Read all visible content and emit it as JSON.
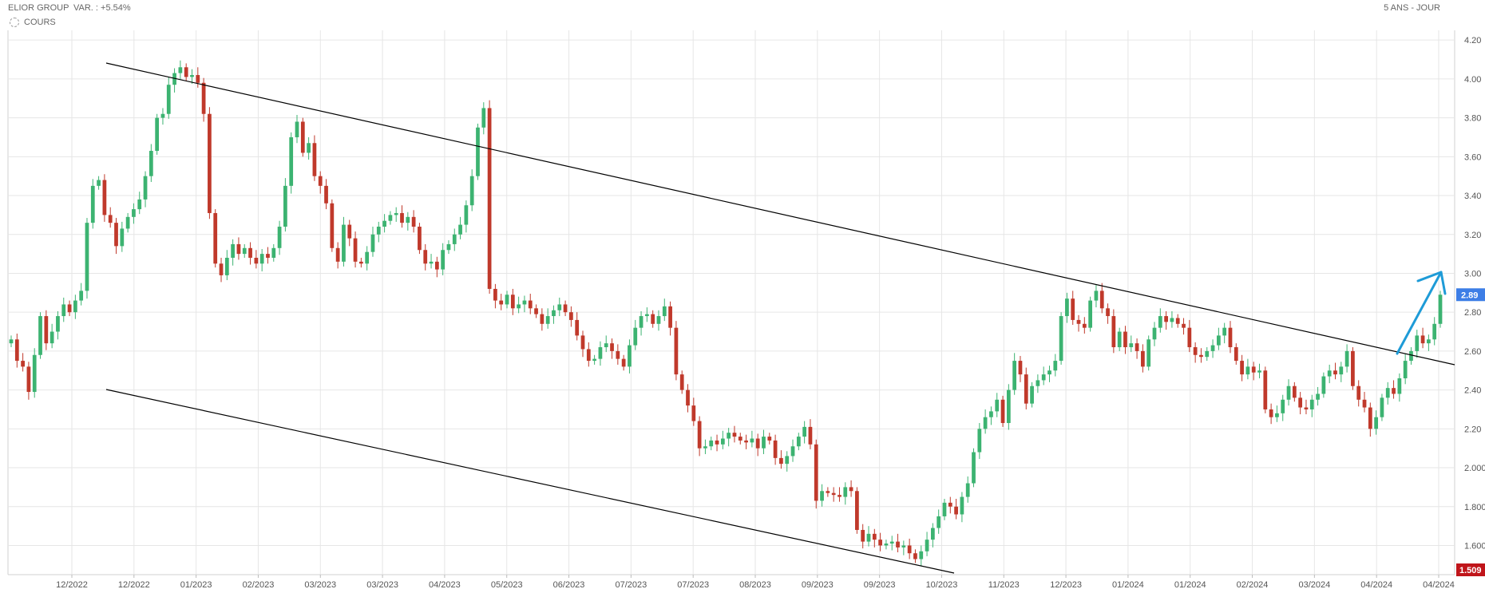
{
  "header": {
    "name": "ELIOR GROUP",
    "var": "VAR. : +5.54%",
    "period": "5 ANS - JOUR"
  },
  "legend": {
    "label": "COURS",
    "icon": "gear-icon"
  },
  "colors": {
    "up": "#3cb371",
    "down": "#c0392b",
    "grid": "#e6e6e6",
    "last_bg": "#3d7ee6",
    "min_bg": "#c0151a",
    "trendline": "#000000",
    "arrow": "#1e9bd7"
  },
  "chart_data": {
    "type": "candlestick",
    "ylim": [
      1.45,
      4.25
    ],
    "yticks": [
      "4.20",
      "4.00",
      "3.80",
      "3.60",
      "3.40",
      "3.20",
      "3.00",
      "2.80",
      "2.60",
      "2.40",
      "2.20",
      "2.000",
      "1.800",
      "1.600"
    ],
    "ytick_values": [
      4.2,
      4.0,
      3.8,
      3.6,
      3.4,
      3.2,
      3.0,
      2.8,
      2.6,
      2.4,
      2.2,
      2.0,
      1.8,
      1.6
    ],
    "xticks": [
      "12/2022",
      "12/2022",
      "01/2023",
      "02/2023",
      "03/2023",
      "03/2023",
      "04/2023",
      "05/2023",
      "06/2023",
      "07/2023",
      "07/2023",
      "08/2023",
      "09/2023",
      "09/2023",
      "10/2023",
      "11/2023",
      "12/2023",
      "01/2024",
      "01/2024",
      "02/2024",
      "03/2024",
      "04/2024",
      "04/2024"
    ],
    "last_price": "2.89",
    "last_value": 2.89,
    "min_price": "1.509",
    "min_value": 1.509,
    "closes": [
      2.66,
      2.55,
      2.52,
      2.39,
      2.58,
      2.78,
      2.64,
      2.7,
      2.78,
      2.84,
      2.8,
      2.86,
      2.91,
      3.26,
      3.45,
      3.48,
      3.3,
      3.26,
      3.14,
      3.23,
      3.29,
      3.33,
      3.38,
      3.5,
      3.63,
      3.8,
      3.82,
      3.97,
      4.03,
      4.06,
      4.01,
      4.02,
      3.98,
      3.82,
      3.31,
      3.05,
      2.99,
      3.08,
      3.15,
      3.1,
      3.13,
      3.08,
      3.05,
      3.1,
      3.08,
      3.13,
      3.24,
      3.45,
      3.7,
      3.78,
      3.62,
      3.67,
      3.5,
      3.45,
      3.36,
      3.13,
      3.06,
      3.25,
      3.18,
      3.06,
      3.05,
      3.11,
      3.2,
      3.24,
      3.27,
      3.3,
      3.31,
      3.26,
      3.29,
      3.24,
      3.12,
      3.05,
      3.06,
      3.02,
      3.12,
      3.15,
      3.2,
      3.25,
      3.35,
      3.5,
      3.75,
      3.85,
      2.92,
      2.86,
      2.84,
      2.89,
      2.82,
      2.84,
      2.86,
      2.82,
      2.79,
      2.74,
      2.78,
      2.81,
      2.84,
      2.8,
      2.76,
      2.68,
      2.61,
      2.55,
      2.56,
      2.62,
      2.64,
      2.6,
      2.56,
      2.52,
      2.63,
      2.72,
      2.78,
      2.79,
      2.74,
      2.78,
      2.83,
      2.72,
      2.48,
      2.4,
      2.32,
      2.24,
      2.1,
      2.11,
      2.14,
      2.12,
      2.15,
      2.18,
      2.16,
      2.14,
      2.13,
      2.15,
      2.1,
      2.16,
      2.14,
      2.05,
      2.02,
      2.06,
      2.11,
      2.16,
      2.21,
      2.12,
      1.83,
      1.88,
      1.87,
      1.86,
      1.85,
      1.9,
      1.88,
      1.68,
      1.62,
      1.66,
      1.63,
      1.6,
      1.61,
      1.62,
      1.59,
      1.6,
      1.56,
      1.53,
      1.57,
      1.63,
      1.69,
      1.75,
      1.82,
      1.8,
      1.76,
      1.85,
      1.92,
      2.08,
      2.2,
      2.26,
      2.29,
      2.35,
      2.23,
      2.4,
      2.55,
      2.48,
      2.33,
      2.42,
      2.45,
      2.48,
      2.5,
      2.55,
      2.78,
      2.87,
      2.76,
      2.74,
      2.72,
      2.86,
      2.91,
      2.82,
      2.78,
      2.62,
      2.7,
      2.62,
      2.64,
      2.6,
      2.52,
      2.66,
      2.72,
      2.78,
      2.75,
      2.77,
      2.74,
      2.72,
      2.62,
      2.58,
      2.57,
      2.6,
      2.63,
      2.68,
      2.72,
      2.62,
      2.55,
      2.48,
      2.52,
      2.49,
      2.5,
      2.3,
      2.26,
      2.28,
      2.35,
      2.42,
      2.36,
      2.31,
      2.3,
      2.35,
      2.38,
      2.47,
      2.5,
      2.48,
      2.52,
      2.6,
      2.42,
      2.35,
      2.31,
      2.2,
      2.26,
      2.36,
      2.41,
      2.38,
      2.46,
      2.55,
      2.6,
      2.68,
      2.64,
      2.66,
      2.74,
      2.89
    ]
  }
}
